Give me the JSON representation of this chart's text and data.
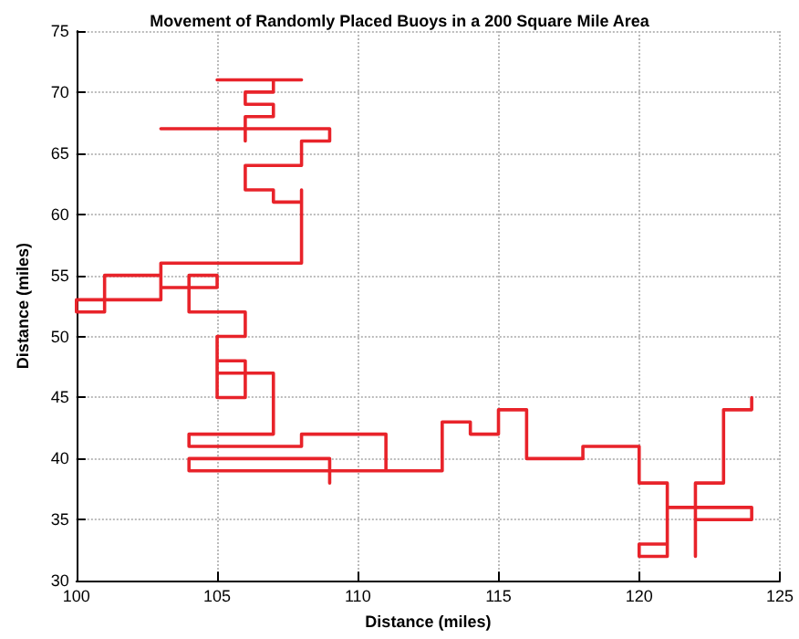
{
  "chart_data": {
    "type": "line",
    "title": "Movement of Randomly Placed Buoys in a 200 Square Mile Area",
    "xlabel": "Distance (miles)",
    "ylabel": "Distance (miles)",
    "series": [
      {
        "color": "#e8232a",
        "x": [
          108,
          105,
          107,
          107,
          106,
          106,
          107,
          107,
          106,
          106,
          106,
          103,
          109,
          109,
          108,
          108,
          106,
          106,
          107,
          107,
          108,
          108,
          108,
          103,
          103,
          100,
          100,
          101,
          101,
          103,
          103,
          105,
          105,
          104,
          104,
          106,
          106,
          105,
          105,
          106,
          106,
          105,
          105,
          107,
          107,
          104,
          104,
          108,
          108,
          111,
          111,
          109,
          109,
          109,
          104,
          104,
          113,
          113,
          114,
          114,
          115,
          115,
          116,
          116,
          118,
          118,
          120,
          120,
          121,
          121,
          120,
          120,
          121,
          121,
          124,
          124,
          122,
          122,
          122,
          122,
          123,
          123,
          124,
          124
        ],
        "values": [
          71,
          71,
          71,
          70,
          70,
          69,
          69,
          68,
          68,
          66,
          67,
          67,
          67,
          66,
          66,
          64,
          64,
          62,
          62,
          61,
          61,
          62,
          56,
          56,
          53,
          53,
          52,
          52,
          55,
          55,
          54,
          54,
          55,
          55,
          52,
          52,
          50,
          50,
          45,
          45,
          48,
          48,
          47,
          47,
          42,
          42,
          41,
          41,
          42,
          42,
          39,
          39,
          38,
          40,
          40,
          39,
          39,
          43,
          43,
          42,
          42,
          44,
          44,
          40,
          40,
          41,
          41,
          38,
          38,
          33,
          33,
          32,
          32,
          36,
          36,
          35,
          35,
          38,
          32,
          38,
          38,
          44,
          44,
          45
        ]
      }
    ],
    "xlim": [
      100,
      125
    ],
    "xticks": [
      100,
      105,
      110,
      115,
      120,
      125
    ],
    "ylim": [
      30,
      75
    ],
    "yticks": [
      30,
      35,
      40,
      45,
      50,
      55,
      60,
      65,
      70,
      75
    ],
    "grid": true,
    "marker": "none",
    "line_style": "solid"
  }
}
